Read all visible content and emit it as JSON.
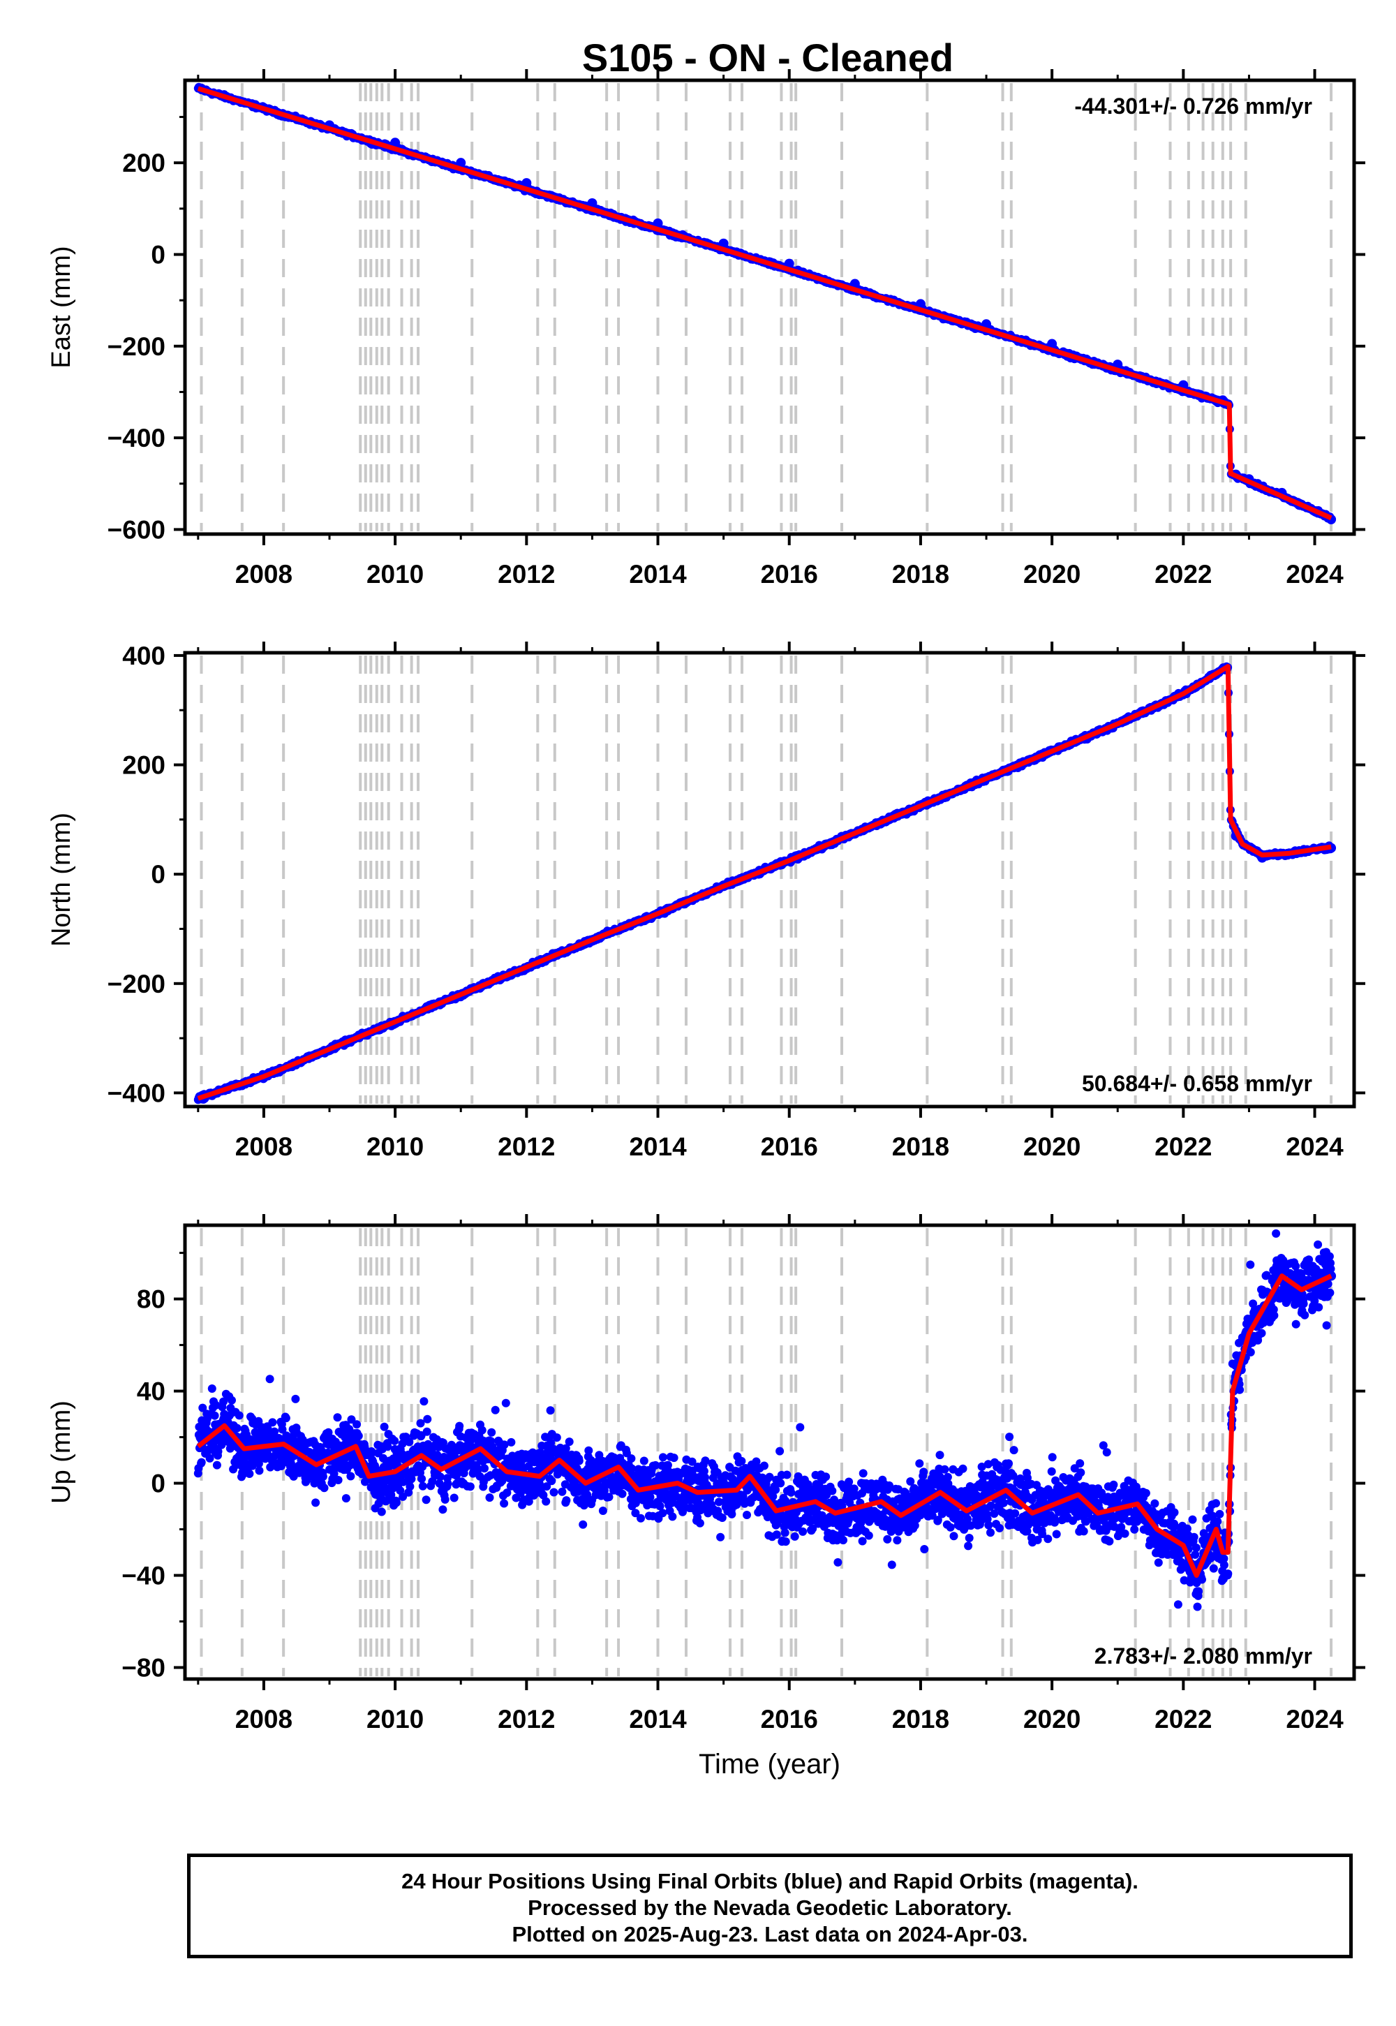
{
  "title": "S105  - ON - Cleaned",
  "footer": {
    "line1": "24 Hour Positions Using Final Orbits (blue) and Rapid Orbits (magenta).",
    "line2": "Processed by the Nevada Geodetic Laboratory.",
    "line3": "Plotted on 2025-Aug-23. Last data on 2024-Apr-03."
  },
  "colors": {
    "data": "#0000ff",
    "model": "#ff0000",
    "events": "#c8c8c8",
    "axis": "#000000"
  },
  "chart_data": [
    {
      "type": "scatter",
      "ylabel": "East (mm)",
      "xlabel": "",
      "xlim": [
        2006.8,
        2024.6
      ],
      "ylim": [
        -610,
        380
      ],
      "yticks": [
        200,
        0,
        -200,
        -400,
        -600
      ],
      "ytick_labels": [
        "200",
        "0",
        "−200",
        "−400",
        "−600"
      ],
      "xticks": [
        2008,
        2010,
        2012,
        2014,
        2016,
        2018,
        2020,
        2022,
        2024
      ],
      "rate_label": "-44.301+/- 0.726 mm/yr",
      "rate_position": "top-right",
      "model": [
        [
          2007.0,
          362
        ],
        [
          2022.7,
          -327
        ],
        [
          2022.72,
          -478
        ],
        [
          2024.25,
          -575
        ]
      ],
      "points": [
        [
          2007.05,
          362
        ],
        [
          2008,
          320
        ],
        [
          2009,
          282
        ],
        [
          2010,
          244
        ],
        [
          2011,
          200
        ],
        [
          2012,
          156
        ],
        [
          2013,
          112
        ],
        [
          2014,
          68
        ],
        [
          2015,
          24
        ],
        [
          2016,
          -20
        ],
        [
          2017,
          -64
        ],
        [
          2018,
          -108
        ],
        [
          2019,
          -152
        ],
        [
          2020,
          -195
        ],
        [
          2021,
          -240
        ],
        [
          2022,
          -285
        ],
        [
          2022.6,
          -318
        ],
        [
          2022.8,
          -480
        ],
        [
          2023,
          -490
        ],
        [
          2023.5,
          -520
        ],
        [
          2024,
          -560
        ],
        [
          2024.25,
          -578
        ]
      ]
    },
    {
      "type": "scatter",
      "ylabel": "North (mm)",
      "xlabel": "",
      "xlim": [
        2006.8,
        2024.6
      ],
      "ylim": [
        -425,
        405
      ],
      "yticks": [
        400,
        200,
        0,
        -200,
        -400
      ],
      "ytick_labels": [
        "400",
        "200",
        "0",
        "−200",
        "−400"
      ],
      "xticks": [
        2008,
        2010,
        2012,
        2014,
        2016,
        2018,
        2020,
        2022,
        2024
      ],
      "rate_label": "50.684+/- 0.658 mm/yr",
      "rate_position": "bottom-right",
      "model": [
        [
          2007.0,
          -410
        ],
        [
          2008,
          -370
        ],
        [
          2009,
          -320
        ],
        [
          2010,
          -270
        ],
        [
          2011,
          -220
        ],
        [
          2012,
          -170
        ],
        [
          2013,
          -120
        ],
        [
          2014,
          -72
        ],
        [
          2015,
          -22
        ],
        [
          2016,
          25
        ],
        [
          2017,
          75
        ],
        [
          2018,
          125
        ],
        [
          2019,
          175
        ],
        [
          2020,
          225
        ],
        [
          2021,
          275
        ],
        [
          2022,
          330
        ],
        [
          2022.68,
          380
        ],
        [
          2022.72,
          100
        ],
        [
          2022.9,
          55
        ],
        [
          2023.2,
          35
        ],
        [
          2023.6,
          38
        ],
        [
          2024.25,
          50
        ]
      ],
      "points": [
        [
          2007.05,
          -410
        ],
        [
          2008,
          -372
        ],
        [
          2009,
          -322
        ],
        [
          2010,
          -272
        ],
        [
          2011,
          -222
        ],
        [
          2012,
          -172
        ],
        [
          2013,
          -122
        ],
        [
          2014,
          -72
        ],
        [
          2015,
          -22
        ],
        [
          2016,
          24
        ],
        [
          2017,
          74
        ],
        [
          2018,
          126
        ],
        [
          2019,
          176
        ],
        [
          2020,
          226
        ],
        [
          2021,
          276
        ],
        [
          2022,
          330
        ],
        [
          2022.6,
          375
        ],
        [
          2022.8,
          70
        ],
        [
          2023.2,
          30
        ],
        [
          2023.8,
          42
        ],
        [
          2024.25,
          48
        ]
      ]
    },
    {
      "type": "scatter",
      "ylabel": "Up (mm)",
      "xlabel": "Time (year)",
      "xlim": [
        2006.8,
        2024.6
      ],
      "ylim": [
        -85,
        112
      ],
      "yticks": [
        80,
        40,
        0,
        -40,
        -80
      ],
      "ytick_labels": [
        "80",
        "40",
        "0",
        "−40",
        "−80"
      ],
      "xticks": [
        2008,
        2010,
        2012,
        2014,
        2016,
        2018,
        2020,
        2022,
        2024
      ],
      "rate_label": "2.783+/- 2.080 mm/yr",
      "rate_position": "bottom-right",
      "model": [
        [
          2007.0,
          16
        ],
        [
          2007.4,
          25
        ],
        [
          2007.7,
          15
        ],
        [
          2008.3,
          17
        ],
        [
          2008.8,
          8
        ],
        [
          2009.4,
          16
        ],
        [
          2009.6,
          3
        ],
        [
          2010.0,
          5
        ],
        [
          2010.4,
          12
        ],
        [
          2010.7,
          6
        ],
        [
          2011.3,
          15
        ],
        [
          2011.7,
          5
        ],
        [
          2012.2,
          3
        ],
        [
          2012.5,
          10
        ],
        [
          2012.9,
          0
        ],
        [
          2013.4,
          7
        ],
        [
          2013.7,
          -3
        ],
        [
          2014.3,
          0
        ],
        [
          2014.6,
          -4
        ],
        [
          2015.2,
          -3
        ],
        [
          2015.4,
          3
        ],
        [
          2015.8,
          -12
        ],
        [
          2016.4,
          -8
        ],
        [
          2016.7,
          -13
        ],
        [
          2017.4,
          -8
        ],
        [
          2017.7,
          -14
        ],
        [
          2018.3,
          -4
        ],
        [
          2018.7,
          -12
        ],
        [
          2019.3,
          -3
        ],
        [
          2019.7,
          -13
        ],
        [
          2020.4,
          -5
        ],
        [
          2020.7,
          -13
        ],
        [
          2021.3,
          -9
        ],
        [
          2021.6,
          -20
        ],
        [
          2022.0,
          -27
        ],
        [
          2022.2,
          -40
        ],
        [
          2022.5,
          -20
        ],
        [
          2022.6,
          -30
        ],
        [
          2022.68,
          -30
        ],
        [
          2022.75,
          40
        ],
        [
          2023.0,
          65
        ],
        [
          2023.5,
          90
        ],
        [
          2023.8,
          84
        ],
        [
          2024.25,
          90
        ]
      ],
      "points": [
        [
          2007.05,
          16
        ],
        [
          2007.4,
          28
        ],
        [
          2007.7,
          12
        ],
        [
          2008.3,
          18
        ],
        [
          2008.8,
          6
        ],
        [
          2009.4,
          18
        ],
        [
          2010.0,
          4
        ],
        [
          2010.4,
          14
        ],
        [
          2011.3,
          16
        ],
        [
          2011.7,
          4
        ],
        [
          2012.5,
          10
        ],
        [
          2012.9,
          -2
        ],
        [
          2013.4,
          8
        ],
        [
          2013.7,
          -4
        ],
        [
          2014.6,
          -6
        ],
        [
          2015.4,
          2
        ],
        [
          2015.8,
          -14
        ],
        [
          2016.4,
          -8
        ],
        [
          2017.4,
          -8
        ],
        [
          2017.7,
          -16
        ],
        [
          2018.3,
          -4
        ],
        [
          2019.3,
          -2
        ],
        [
          2019.7,
          -14
        ],
        [
          2020.4,
          -4
        ],
        [
          2020.7,
          -14
        ],
        [
          2021.3,
          -10
        ],
        [
          2021.6,
          -22
        ],
        [
          2022.2,
          -40
        ],
        [
          2022.5,
          -20
        ],
        [
          2022.8,
          45
        ],
        [
          2023.0,
          62
        ],
        [
          2023.5,
          92
        ],
        [
          2023.8,
          82
        ],
        [
          2024.25,
          90
        ]
      ]
    }
  ],
  "event_years": [
    2007.05,
    2007.67,
    2008.3,
    2009.47,
    2009.55,
    2009.63,
    2009.72,
    2009.8,
    2009.9,
    2010.1,
    2010.25,
    2010.35,
    2011.17,
    2012.17,
    2012.43,
    2013.22,
    2013.4,
    2014.0,
    2014.43,
    2015.1,
    2015.28,
    2015.88,
    2016.03,
    2016.1,
    2016.8,
    2018.1,
    2019.25,
    2019.38,
    2021.27,
    2021.8,
    2022.08,
    2022.3,
    2022.45,
    2022.6,
    2022.72,
    2022.95,
    2024.25
  ]
}
